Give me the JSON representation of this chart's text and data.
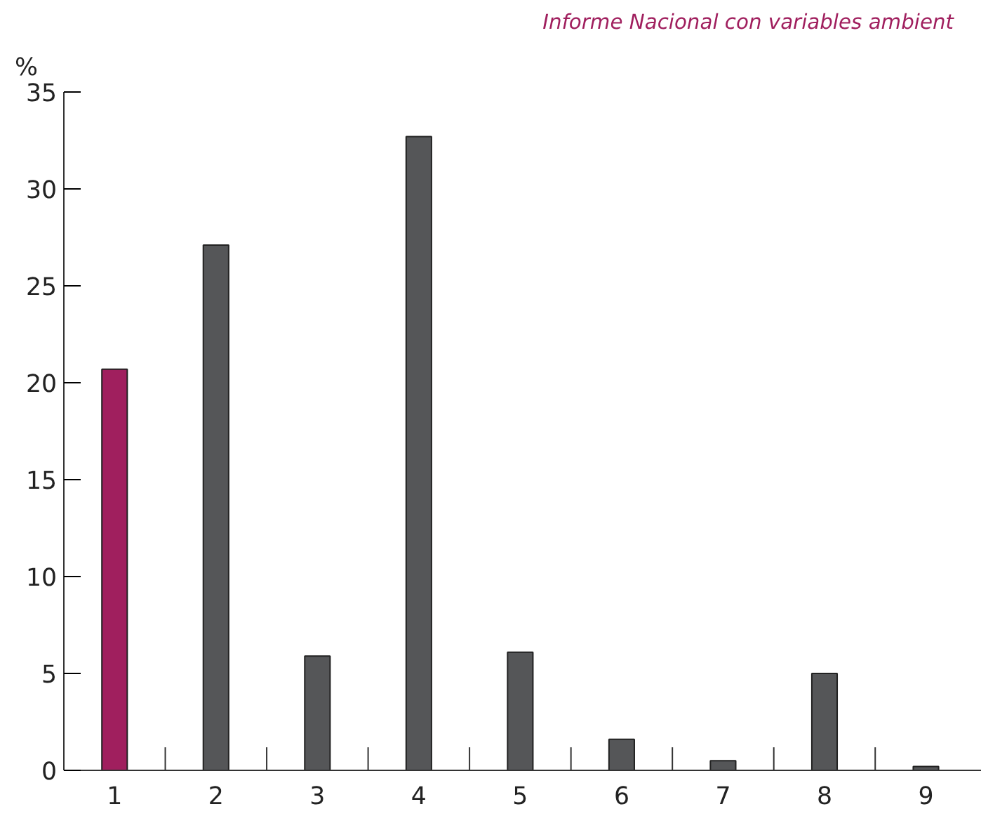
{
  "chart_data": {
    "type": "bar",
    "title": "Informe Nacional con variables ambient",
    "ylabel": "%",
    "categories": [
      "1",
      "2",
      "3",
      "4",
      "5",
      "6",
      "7",
      "8",
      "9"
    ],
    "values": [
      20.7,
      27.1,
      5.9,
      32.7,
      6.1,
      1.6,
      0.5,
      5.0,
      0.2
    ],
    "colors": [
      "#a01f5e",
      "#555658",
      "#555658",
      "#555658",
      "#555658",
      "#555658",
      "#555658",
      "#555658",
      "#555658"
    ],
    "ylim": [
      0,
      35
    ],
    "yticks": [
      0,
      5,
      10,
      15,
      20,
      25,
      30,
      35
    ],
    "grid": false
  }
}
